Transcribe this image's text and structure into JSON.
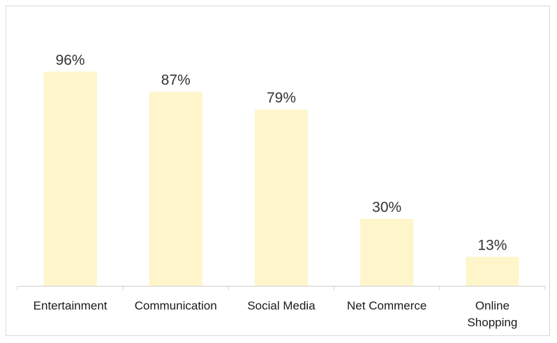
{
  "chart_data": {
    "type": "bar",
    "categories": [
      "Entertainment",
      "Communication",
      "Social Media",
      "Net Commerce",
      "Online Shopping"
    ],
    "category_lines": [
      [
        "Entertainment"
      ],
      [
        "Communication"
      ],
      [
        "Social Media"
      ],
      [
        "Net Commerce"
      ],
      [
        "Online",
        "Shopping"
      ]
    ],
    "values": [
      96,
      87,
      79,
      30,
      13
    ],
    "data_labels": [
      "96%",
      "87%",
      "79%",
      "30%",
      "13%"
    ],
    "ylim": [
      0,
      100
    ],
    "grid": false,
    "legend": "none",
    "bar_color": "#fef5cb",
    "axis_color": "#d0d0d0",
    "text_color": "#333333"
  }
}
